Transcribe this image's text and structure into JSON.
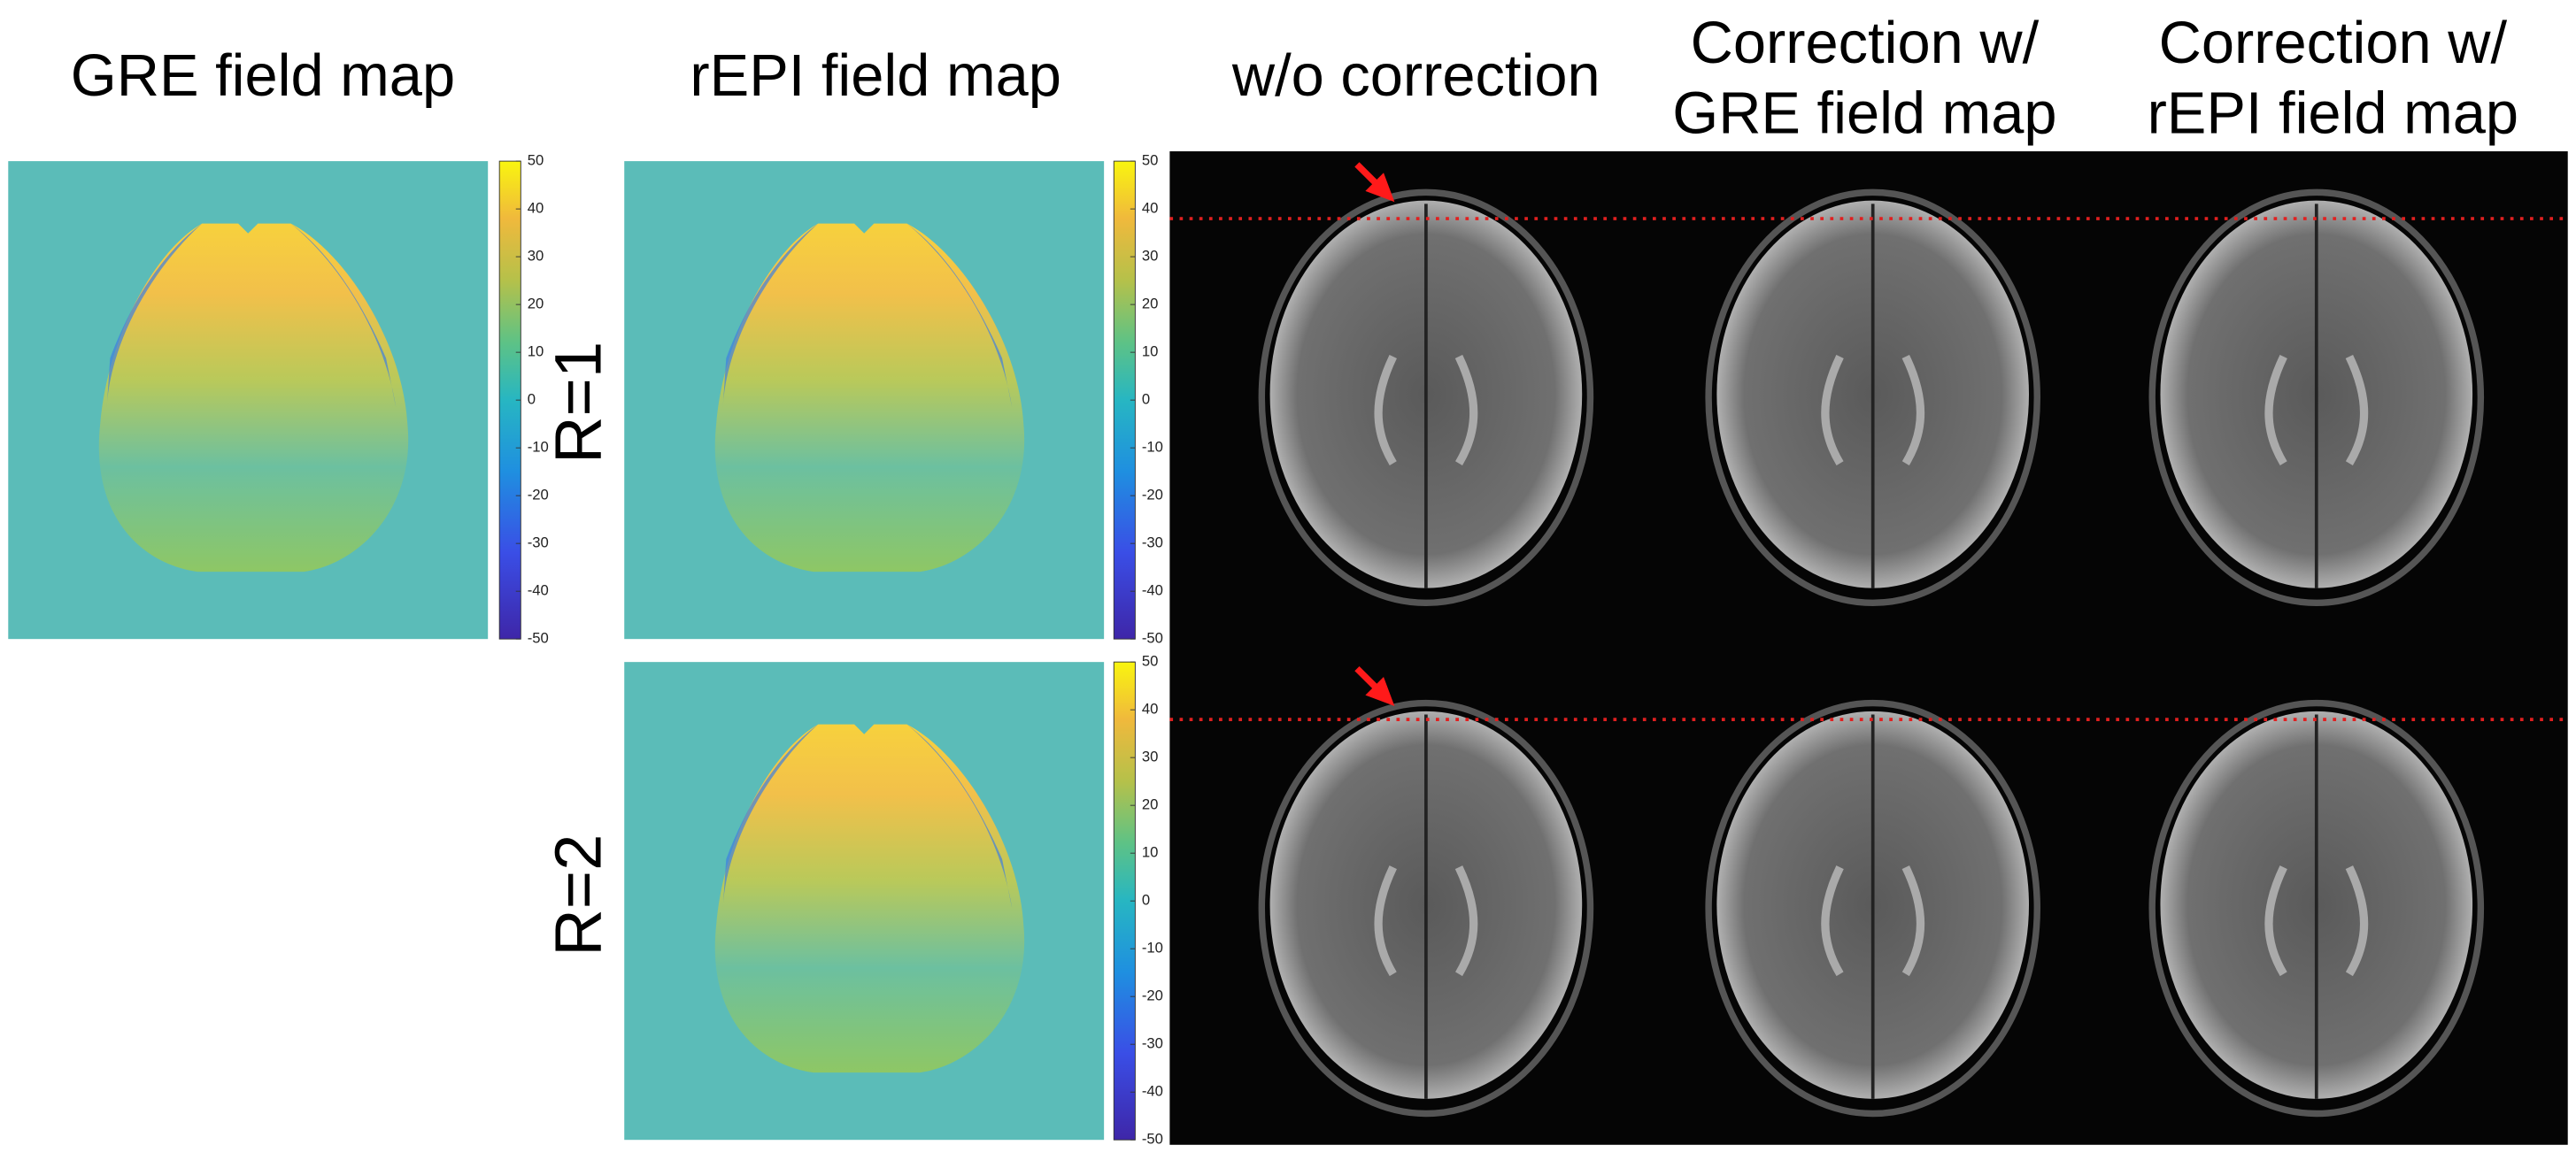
{
  "columns": [
    {
      "lines": [
        "GRE field map"
      ]
    },
    {
      "lines": [
        "rEPI field map"
      ]
    },
    {
      "lines": [
        "w/o correction"
      ]
    },
    {
      "lines": [
        "Correction w/",
        "GRE field map"
      ]
    },
    {
      "lines": [
        "Correction w/",
        "rEPI field map"
      ]
    }
  ],
  "rows": [
    "R=1",
    "R=2"
  ],
  "colorbars": [
    {
      "ylim": [
        -50,
        50
      ],
      "yticks": [
        50,
        40,
        30,
        20,
        10,
        0,
        -10,
        -20,
        -30,
        -40,
        -50
      ]
    },
    {
      "ylim": [
        -50,
        50
      ],
      "yticks": [
        50,
        40,
        30,
        20,
        10,
        0,
        -10,
        -20,
        -30,
        -40,
        -50
      ]
    },
    {
      "ylim": [
        -50,
        50
      ],
      "yticks": [
        50,
        40,
        30,
        20,
        10,
        0,
        -10,
        -20,
        -30,
        -40,
        -50
      ]
    }
  ]
}
